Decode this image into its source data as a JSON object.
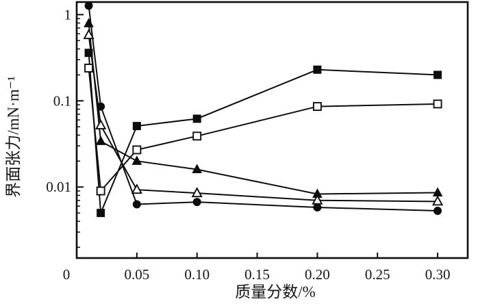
{
  "figure": {
    "background": "#ffffff",
    "ink_color": "#141414"
  },
  "chart_data": {
    "type": "line",
    "title": "",
    "xlabel": "质量分数/%",
    "ylabel": "界面张力/mN·m⁻¹",
    "yscale": "log",
    "xscale": "linear",
    "xlim": [
      0,
      0.325
    ],
    "ylim": [
      0.0015,
      1.4
    ],
    "grid": false,
    "legend": "none",
    "line_color": "#0d0d0d",
    "marker_open_fill": "#ffffff",
    "x": [
      0.01,
      0.02,
      0.05,
      0.1,
      0.2,
      0.3
    ],
    "series": [
      {
        "name": "filled-square",
        "marker": "square",
        "fill": "filled",
        "values": [
          0.36,
          0.005,
          0.051,
          0.062,
          0.23,
          0.2
        ]
      },
      {
        "name": "open-square",
        "marker": "square",
        "fill": "open",
        "values": [
          0.24,
          0.009,
          0.027,
          0.039,
          0.086,
          0.092
        ]
      },
      {
        "name": "filled-triangle",
        "marker": "triangle",
        "fill": "filled",
        "values": [
          0.79,
          0.034,
          0.02,
          0.016,
          0.0083,
          0.0086
        ]
      },
      {
        "name": "open-triangle",
        "marker": "triangle",
        "fill": "open",
        "values": [
          0.58,
          0.052,
          0.0093,
          0.0085,
          0.007,
          0.0068
        ]
      },
      {
        "name": "filled-circle",
        "marker": "circle",
        "fill": "filled",
        "values": [
          1.27,
          0.086,
          0.0063,
          0.0067,
          0.0058,
          0.0053
        ]
      }
    ],
    "xticks": [
      0,
      0.05,
      0.1,
      0.15,
      0.2,
      0.25,
      0.3
    ],
    "xtick_labels": [
      "0",
      "0.05",
      "0.10",
      "0.15",
      "0.20",
      "0.25",
      "0.30"
    ],
    "yticks": [
      1,
      0.1,
      0.01
    ],
    "ytick_labels": [
      "1",
      "0.1",
      "0.01"
    ]
  }
}
